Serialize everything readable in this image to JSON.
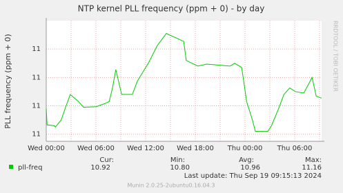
{
  "chart_data": {
    "type": "line",
    "title": "NTP kernel PLL frequency (ppm + 0) - by day",
    "y_label": "PLL frequency (ppm + 0)",
    "side_label": "RRDTOOL / TOBI OETIKER",
    "xlim": [
      0,
      33.25
    ],
    "xticks": [
      {
        "value": 0,
        "label": "Wed 00:00"
      },
      {
        "value": 6,
        "label": "Wed 06:00"
      },
      {
        "value": 12,
        "label": "Wed 12:00"
      },
      {
        "value": 18,
        "label": "Wed 18:00"
      },
      {
        "value": 24,
        "label": "Thu 00:00"
      },
      {
        "value": 30,
        "label": "Thu 06:00"
      }
    ],
    "ylim": [
      10.775,
      11.2
    ],
    "yticks": [
      {
        "value": 10.8,
        "label": "11"
      },
      {
        "value": 10.9,
        "label": "11"
      },
      {
        "value": 11.0,
        "label": "11"
      },
      {
        "value": 11.1,
        "label": "11"
      }
    ],
    "grid": true,
    "x": [
      0,
      0.1,
      1,
      1.1,
      1.8,
      2.4,
      2.9,
      3.9,
      4.5,
      6,
      7,
      7.6,
      8,
      8.4,
      9.1,
      10.4,
      11,
      12.4,
      13.4,
      14.5,
      16.6,
      16.9,
      18.3,
      19.4,
      22.2,
      22.75,
      23.6,
      24.2,
      24.9,
      25.25,
      26.75,
      27.2,
      28,
      28.7,
      29.4,
      30.1,
      31.1,
      32.1,
      32.6,
      33.25
    ],
    "series": [
      {
        "name": "pll-freq",
        "color": "#00cc00",
        "values": [
          10.89,
          10.833,
          10.83,
          10.825,
          10.85,
          10.9,
          10.94,
          10.915,
          10.895,
          10.897,
          10.907,
          10.915,
          10.963,
          11.028,
          10.94,
          10.94,
          10.987,
          11.054,
          11.112,
          11.155,
          11.127,
          11.06,
          11.04,
          11.047,
          11.04,
          11.05,
          11.035,
          10.915,
          10.85,
          10.81,
          10.81,
          10.83,
          10.886,
          10.94,
          10.963,
          10.95,
          10.945,
          11.0,
          10.934,
          10.927
        ]
      }
    ],
    "stats": [
      {
        "label": "Cur:",
        "value": "10.92"
      },
      {
        "label": "Min:",
        "value": "10.80"
      },
      {
        "label": "Avg:",
        "value": "10.96"
      },
      {
        "label": "Max:",
        "value": "11.16"
      }
    ],
    "last_update": "Last update:  Thu Sep 19 09:15:13 2024",
    "footer": "Munin 2.0.25-2ubuntu0.16.04.3"
  }
}
